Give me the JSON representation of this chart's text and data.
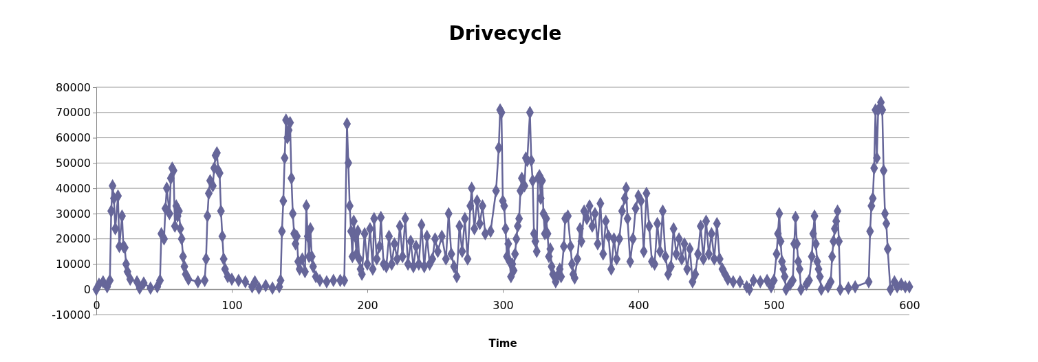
{
  "chart_data": {
    "type": "line",
    "title": "Drivecycle",
    "xlabel": "Time",
    "xlim": [
      0,
      600
    ],
    "xticks": [
      0,
      100,
      200,
      300,
      400,
      500,
      600
    ],
    "ylim": [
      -10000,
      80000
    ],
    "yticks": [
      -10000,
      0,
      10000,
      20000,
      30000,
      40000,
      50000,
      60000,
      70000,
      80000
    ],
    "grid": "y",
    "marker": "diamond",
    "line_style": "solid",
    "series": [
      {
        "color": "#666699",
        "x": [
          0,
          2,
          5,
          8,
          10,
          11,
          12,
          13,
          14,
          16,
          17,
          19,
          20,
          21,
          22,
          23,
          25,
          30,
          32,
          35,
          40,
          45,
          47,
          48,
          50,
          51,
          52,
          54,
          55,
          56,
          57,
          58,
          59,
          60,
          61,
          62,
          63,
          64,
          65,
          66,
          68,
          75,
          80,
          81,
          82,
          83,
          84,
          86,
          87,
          88,
          89,
          90,
          91,
          92,
          93,
          94,
          95,
          97,
          100,
          105,
          110,
          115,
          117,
          120,
          125,
          130,
          135,
          136,
          137,
          138,
          139,
          140,
          141,
          142,
          143,
          144,
          145,
          146,
          147,
          148,
          149,
          150,
          152,
          154,
          155,
          156,
          157,
          158,
          159,
          160,
          162,
          165,
          170,
          175,
          180,
          183,
          185,
          186,
          187,
          188,
          189,
          190,
          191,
          192,
          193,
          194,
          195,
          196,
          198,
          200,
          202,
          204,
          205,
          207,
          209,
          210,
          212,
          214,
          216,
          218,
          220,
          222,
          224,
          226,
          228,
          230,
          232,
          234,
          236,
          238,
          240,
          242,
          244,
          246,
          248,
          250,
          252,
          255,
          258,
          260,
          262,
          264,
          266,
          268,
          270,
          272,
          274,
          276,
          277,
          279,
          281,
          283,
          285,
          287,
          291,
          295,
          297,
          298,
          299,
          300,
          301,
          302,
          303,
          304,
          305,
          306,
          307,
          308,
          309,
          310,
          311,
          312,
          313,
          314,
          316,
          317,
          318,
          320,
          321,
          322,
          323,
          324,
          325,
          326,
          327,
          328,
          329,
          330,
          331,
          332,
          333,
          334,
          335,
          336,
          337,
          339,
          340,
          342,
          343,
          345,
          346,
          348,
          350,
          351,
          352,
          353,
          355,
          357,
          358,
          360,
          362,
          364,
          366,
          368,
          370,
          372,
          374,
          376,
          378,
          380,
          382,
          384,
          386,
          388,
          390,
          391,
          392,
          394,
          396,
          398,
          400,
          402,
          404,
          406,
          408,
          410,
          412,
          414,
          416,
          418,
          420,
          422,
          424,
          426,
          428,
          430,
          432,
          434,
          436,
          438,
          440,
          442,
          444,
          446,
          448,
          450,
          452,
          454,
          456,
          458,
          460,
          462,
          464,
          466,
          470,
          475,
          480,
          482,
          485,
          490,
          495,
          498,
          500,
          502,
          503,
          504,
          505,
          506,
          507,
          508,
          509,
          512,
          514,
          515,
          516,
          517,
          518,
          519,
          520,
          524,
          526,
          528,
          529,
          530,
          531,
          532,
          533,
          534,
          535,
          540,
          542,
          543,
          544,
          545,
          546,
          547,
          548,
          549,
          555,
          560,
          570,
          571,
          572,
          573,
          574,
          575,
          576,
          577,
          579,
          580,
          581,
          582,
          583,
          584,
          586,
          589,
          591,
          594,
          597,
          600
        ],
        "values": [
          0,
          2000,
          3000,
          1000,
          3500,
          31000,
          41000,
          36000,
          24000,
          37000,
          17000,
          29000,
          17000,
          16500,
          10000,
          7000,
          4000,
          3000,
          500,
          2500,
          500,
          1000,
          3500,
          22000,
          20000,
          32000,
          40000,
          30000,
          44000,
          48000,
          47000,
          25000,
          33000,
          29000,
          31000,
          24000,
          20000,
          13000,
          9000,
          6000,
          4000,
          3000,
          3500,
          12000,
          29000,
          38000,
          43000,
          41000,
          48000,
          53000,
          54000,
          47000,
          46000,
          31000,
          21000,
          12000,
          8000,
          5000,
          4000,
          3500,
          3000,
          1000,
          3000,
          500,
          1500,
          500,
          1000,
          3500,
          23000,
          35000,
          52000,
          67000,
          60000,
          63000,
          66000,
          44000,
          30000,
          22000,
          18000,
          21000,
          11000,
          8000,
          12000,
          7000,
          33000,
          21000,
          13000,
          24000,
          13000,
          9000,
          5000,
          3500,
          3000,
          3500,
          3500,
          3500,
          65500,
          50000,
          33000,
          23000,
          13000,
          27000,
          21000,
          14000,
          23000,
          12000,
          8000,
          6000,
          22000,
          10000,
          24000,
          8000,
          28000,
          12000,
          17000,
          28500,
          10000,
          9000,
          21000,
          10000,
          18000,
          12000,
          25000,
          13000,
          28000,
          10000,
          19000,
          9000,
          17000,
          10000,
          25500,
          9000,
          21000,
          10000,
          12000,
          20000,
          15000,
          21000,
          12000,
          30000,
          14000,
          9000,
          5000,
          25000,
          15000,
          28000,
          12000,
          33000,
          40000,
          24000,
          35000,
          26000,
          33000,
          22000,
          23000,
          39000,
          56000,
          71000,
          70000,
          35000,
          33000,
          24000,
          13000,
          18000,
          11000,
          5000,
          10000,
          7500,
          14000,
          20000,
          25000,
          28000,
          39000,
          44000,
          41000,
          52000,
          51000,
          70000,
          51000,
          43000,
          22000,
          19000,
          15000,
          44000,
          45000,
          36000,
          43000,
          30000,
          22000,
          28000,
          22000,
          13000,
          16000,
          9000,
          6000,
          3000,
          5000,
          8000,
          5000,
          17000,
          28000,
          29000,
          17000,
          10000,
          6000,
          4500,
          12000,
          24000,
          19000,
          31000,
          28000,
          33000,
          25000,
          30000,
          18000,
          34000,
          14000,
          27000,
          21000,
          8000,
          20000,
          12000,
          20000,
          31000,
          36000,
          40000,
          28000,
          11000,
          20000,
          32000,
          37000,
          35000,
          15000,
          38000,
          25000,
          11000,
          10000,
          26000,
          15000,
          31000,
          13000,
          6000,
          9000,
          24000,
          14000,
          20000,
          12000,
          18000,
          8000,
          16000,
          3000,
          6000,
          14000,
          25000,
          12000,
          27000,
          14000,
          22000,
          12000,
          26000,
          12000,
          8000,
          6000,
          4000,
          3000,
          3000,
          1000,
          0,
          3500,
          3000,
          3500,
          1000,
          3500,
          14000,
          22000,
          30000,
          19000,
          11000,
          8000,
          5000,
          0,
          2000,
          3500,
          18000,
          28500,
          18000,
          11000,
          8000,
          0,
          2000,
          3500,
          13000,
          22000,
          29000,
          18000,
          11000,
          8000,
          5000,
          0,
          1000,
          3000,
          13000,
          19000,
          24000,
          27000,
          31000,
          19000,
          0,
          500,
          1000,
          3000,
          23000,
          33000,
          36000,
          48000,
          71000,
          52000,
          71000,
          74000,
          71000,
          47000,
          30000,
          26000,
          16000,
          0,
          3000,
          1000,
          2000,
          1000,
          1000
        ]
      }
    ]
  }
}
